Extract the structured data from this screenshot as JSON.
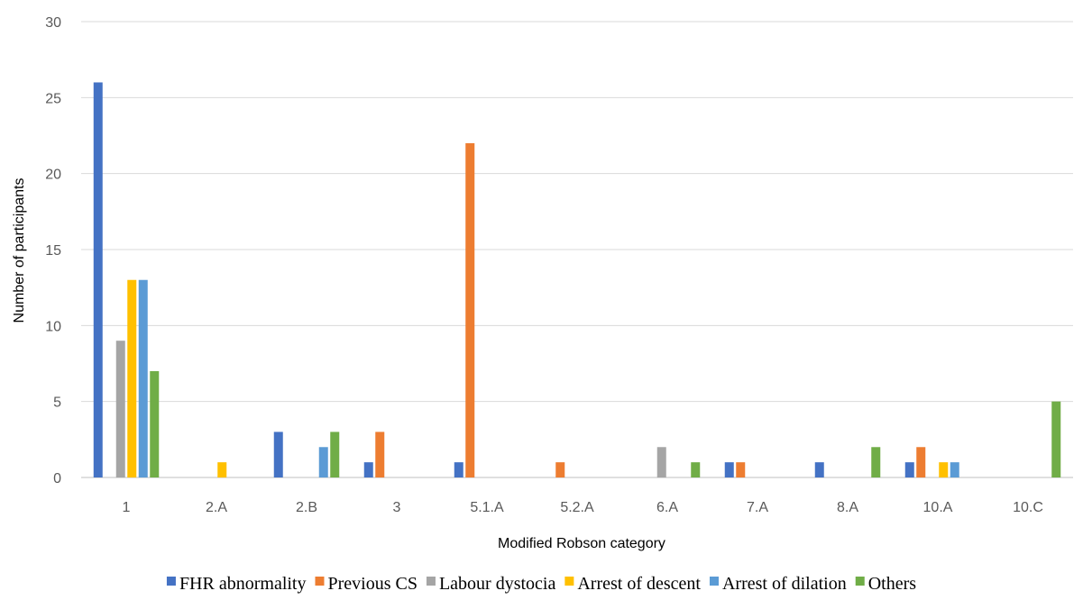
{
  "chart_data": {
    "type": "bar",
    "title": "",
    "xlabel": "Modified Robson category",
    "ylabel": "Number of participants",
    "ylim": [
      0,
      30
    ],
    "yticks": [
      0,
      5,
      10,
      15,
      20,
      25,
      30
    ],
    "grid": true,
    "legend_position": "bottom",
    "categories": [
      "1",
      "2.A",
      "2.B",
      "3",
      "5.1.A",
      "5.2.A",
      "6.A",
      "7.A",
      "8.A",
      "10.A",
      "10.C"
    ],
    "series": [
      {
        "name": "FHR abnormality",
        "color": "#4472c4",
        "values": [
          26,
          0,
          3,
          1,
          1,
          0,
          0,
          1,
          1,
          1,
          0
        ]
      },
      {
        "name": "Previous CS",
        "color": "#ed7d31",
        "values": [
          0,
          0,
          0,
          3,
          22,
          1,
          0,
          1,
          0,
          2,
          0
        ]
      },
      {
        "name": "Labour dystocia",
        "color": "#a5a5a5",
        "values": [
          9,
          0,
          0,
          0,
          0,
          0,
          2,
          0,
          0,
          0,
          0
        ]
      },
      {
        "name": "Arrest of descent",
        "color": "#ffc000",
        "values": [
          13,
          1,
          0,
          0,
          0,
          0,
          0,
          0,
          0,
          1,
          0
        ]
      },
      {
        "name": "Arrest of dilation",
        "color": "#5b9bd5",
        "values": [
          13,
          0,
          2,
          0,
          0,
          0,
          0,
          0,
          0,
          1,
          0
        ]
      },
      {
        "name": "Others",
        "color": "#70ad47",
        "values": [
          7,
          0,
          3,
          0,
          0,
          0,
          1,
          0,
          2,
          0,
          5
        ]
      }
    ]
  }
}
